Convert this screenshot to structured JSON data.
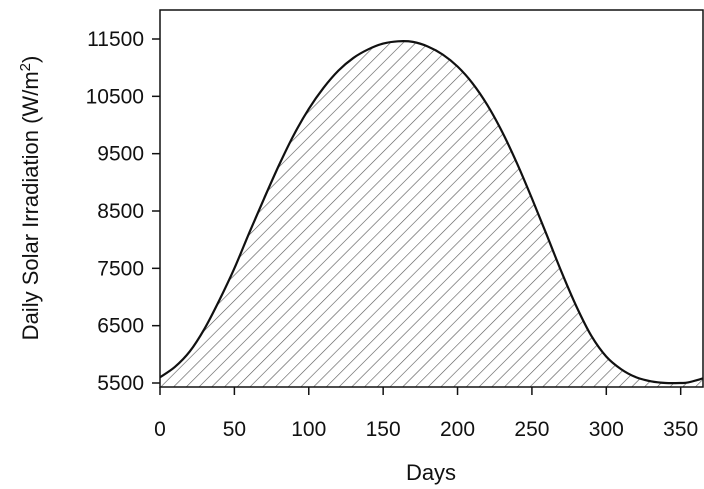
{
  "chart_data": {
    "type": "area",
    "xlabel": "Days",
    "ylabel": "Daily Solar Irradiation (W/m",
    "ylabel_sup": "2",
    "ylabel_close": ")",
    "xlim": [
      0,
      365
    ],
    "ylim": [
      5400,
      12000
    ],
    "x_ticks": [
      0,
      50,
      100,
      150,
      200,
      250,
      300,
      350
    ],
    "y_ticks": [
      5500,
      6500,
      7500,
      8500,
      9500,
      10500,
      11500
    ],
    "fill": "diagonal hatch",
    "grid": false,
    "line_color": "#111111",
    "hatch_color": "#555555",
    "series": [
      {
        "x": [
          0,
          10,
          20,
          30,
          40,
          50,
          60,
          70,
          80,
          90,
          100,
          110,
          120,
          130,
          140,
          150,
          160,
          170,
          180,
          190,
          200,
          210,
          220,
          230,
          240,
          250,
          260,
          270,
          280,
          290,
          300,
          310,
          320,
          330,
          340,
          350,
          355,
          365
        ],
        "y": [
          5600,
          5780,
          6050,
          6450,
          6950,
          7500,
          8120,
          8720,
          9300,
          9830,
          10280,
          10650,
          10950,
          11170,
          11320,
          11420,
          11460,
          11450,
          11370,
          11230,
          11020,
          10730,
          10350,
          9880,
          9330,
          8720,
          8080,
          7430,
          6830,
          6320,
          5960,
          5740,
          5600,
          5530,
          5500,
          5500,
          5510,
          5580
        ]
      }
    ]
  }
}
